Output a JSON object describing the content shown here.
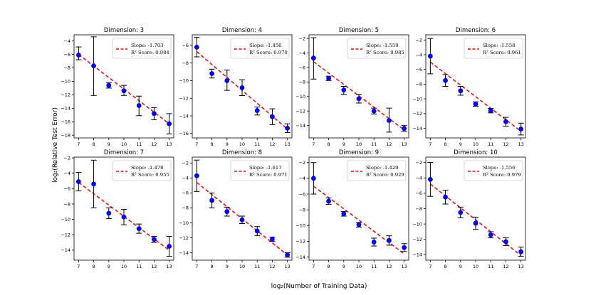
{
  "figure": {
    "ylabel": "log₂(Relative Test Error)",
    "xlabel": "log₂(Number of Training Data)",
    "fit_color": "#ff0000",
    "point_color": "#0000ff",
    "errorbar_color": "#000000"
  },
  "chart_data": [
    {
      "type": "scatter",
      "title": "Dimension: 3",
      "x": [
        7,
        8,
        9,
        10,
        11,
        12,
        13
      ],
      "y": [
        -6.1,
        -7.7,
        -10.6,
        -11.4,
        -13.6,
        -14.8,
        -16.3
      ],
      "yerr_low": [
        0.7,
        4.4,
        0.4,
        0.7,
        1.5,
        0.9,
        1.5
      ],
      "yerr_high": [
        1.2,
        4.3,
        0.4,
        0.8,
        1.4,
        0.9,
        1.5
      ],
      "fit": {
        "x": [
          7,
          13
        ],
        "y": [
          -6.0,
          -16.3
        ]
      },
      "legend": {
        "line1": "Slope: -1.703",
        "line2": "R² Score: 0.984"
      },
      "xlim": [
        6.7,
        13.3
      ],
      "ylim": [
        -18.4,
        -3.1
      ],
      "yticks": [
        -18,
        -16,
        -14,
        -12,
        -10,
        -8,
        -6,
        -4
      ],
      "xticks": [
        7,
        8,
        9,
        10,
        11,
        12,
        13
      ]
    },
    {
      "type": "scatter",
      "title": "Dimension: 4",
      "x": [
        7,
        8,
        9,
        10,
        11,
        12,
        13
      ],
      "y": [
        -6.2,
        -9.2,
        -10.0,
        -10.8,
        -13.4,
        -14.1,
        -15.4
      ],
      "yerr_low": [
        1.1,
        0.5,
        1.1,
        0.9,
        0.5,
        0.9,
        0.5
      ],
      "yerr_high": [
        1.1,
        0.5,
        1.2,
        0.9,
        0.4,
        0.9,
        0.5
      ],
      "fit": {
        "x": [
          7,
          13
        ],
        "y": [
          -6.7,
          -15.5
        ]
      },
      "legend": {
        "line1": "Slope: -1.456",
        "line2": "R² Score: 0.970"
      },
      "xlim": [
        6.7,
        13.3
      ],
      "ylim": [
        -16.5,
        -4.8
      ],
      "yticks": [
        -16,
        -14,
        -12,
        -10,
        -8,
        -6
      ],
      "xticks": [
        7,
        8,
        9,
        10,
        11,
        12,
        13
      ]
    },
    {
      "type": "scatter",
      "title": "Dimension: 5",
      "x": [
        7,
        8,
        9,
        10,
        11,
        12,
        13
      ],
      "y": [
        -4.7,
        -7.5,
        -9.1,
        -10.3,
        -12.0,
        -13.3,
        -14.4
      ],
      "yerr_low": [
        2.9,
        0.3,
        0.6,
        0.6,
        0.4,
        1.6,
        0.4
      ],
      "yerr_high": [
        2.8,
        0.3,
        0.5,
        0.6,
        0.4,
        1.7,
        0.4
      ],
      "fit": {
        "x": [
          7,
          13
        ],
        "y": [
          -5.2,
          -14.6
        ]
      },
      "legend": {
        "line1": "Slope: -1.559",
        "line2": "R² Score: 0.985"
      },
      "xlim": [
        6.7,
        13.3
      ],
      "ylim": [
        -15.7,
        -1.5
      ],
      "yticks": [
        -14,
        -12,
        -10,
        -8,
        -6,
        -4,
        -2
      ],
      "xticks": [
        7,
        8,
        9,
        10,
        11,
        12,
        13
      ]
    },
    {
      "type": "scatter",
      "title": "Dimension: 6",
      "x": [
        7,
        8,
        9,
        10,
        11,
        12,
        13
      ],
      "y": [
        -4.2,
        -7.5,
        -8.9,
        -10.7,
        -11.6,
        -13.1,
        -14.1
      ],
      "yerr_low": [
        2.4,
        0.8,
        0.6,
        0.3,
        0.3,
        0.6,
        0.8
      ],
      "yerr_high": [
        2.4,
        0.8,
        0.6,
        0.3,
        0.3,
        0.6,
        0.8
      ],
      "fit": {
        "x": [
          7,
          13
        ],
        "y": [
          -5.0,
          -14.4
        ]
      },
      "legend": {
        "line1": "Slope: -1.558",
        "line2": "R² Score: 0.961"
      },
      "xlim": [
        6.7,
        13.3
      ],
      "ylim": [
        -15.3,
        -1.3
      ],
      "yticks": [
        -14,
        -12,
        -10,
        -8,
        -6,
        -4,
        -2
      ],
      "xticks": [
        7,
        8,
        9,
        10,
        11,
        12,
        13
      ]
    },
    {
      "type": "scatter",
      "title": "Dimension: 7",
      "x": [
        7,
        8,
        9,
        10,
        11,
        12,
        13
      ],
      "y": [
        -5.1,
        -5.4,
        -9.2,
        -9.7,
        -11.2,
        -12.6,
        -13.5
      ],
      "yerr_low": [
        1.2,
        3.1,
        0.7,
        1.0,
        0.6,
        0.4,
        1.3
      ],
      "yerr_high": [
        1.2,
        3.1,
        0.7,
        1.0,
        0.6,
        0.4,
        1.3
      ],
      "fit": {
        "x": [
          7,
          13
        ],
        "y": [
          -5.2,
          -14.0
        ]
      },
      "legend": {
        "line1": "Slope: -1.478",
        "line2": "R² Score: 0.955"
      },
      "xlim": [
        6.7,
        13.3
      ],
      "ylim": [
        -15.3,
        -1.9
      ],
      "yticks": [
        -14,
        -12,
        -10,
        -8,
        -6,
        -4,
        -2
      ],
      "xticks": [
        7,
        8,
        9,
        10,
        11,
        12,
        13
      ]
    },
    {
      "type": "scatter",
      "title": "Dimension: 8",
      "x": [
        7,
        8,
        9,
        10,
        11,
        12,
        13
      ],
      "y": [
        -3.7,
        -7.0,
        -8.5,
        -9.6,
        -11.1,
        -12.2,
        -14.3
      ],
      "yerr_low": [
        2.1,
        1.0,
        0.6,
        0.5,
        0.6,
        0.3,
        0.3
      ],
      "yerr_high": [
        2.1,
        1.0,
        0.6,
        0.5,
        0.6,
        0.3,
        0.3
      ],
      "fit": {
        "x": [
          7,
          13
        ],
        "y": [
          -4.6,
          -14.3
        ]
      },
      "legend": {
        "line1": "Slope: -1.617",
        "line2": "R² Score: 0.971"
      },
      "xlim": [
        6.7,
        13.3
      ],
      "ylim": [
        -15.0,
        -1.2
      ],
      "yticks": [
        -14,
        -12,
        -10,
        -8,
        -6,
        -4,
        -2
      ],
      "xticks": [
        7,
        8,
        9,
        10,
        11,
        12,
        13
      ]
    },
    {
      "type": "scatter",
      "title": "Dimension: 9",
      "x": [
        7,
        8,
        9,
        10,
        11,
        12,
        13
      ],
      "y": [
        -4.0,
        -6.9,
        -8.5,
        -9.9,
        -12.1,
        -11.9,
        -12.8
      ],
      "yerr_low": [
        2.0,
        0.4,
        0.3,
        0.3,
        0.5,
        0.6,
        0.5
      ],
      "yerr_high": [
        2.0,
        0.4,
        0.3,
        0.3,
        0.5,
        0.6,
        0.5
      ],
      "fit": {
        "x": [
          7,
          13
        ],
        "y": [
          -5.0,
          -13.6
        ]
      },
      "legend": {
        "line1": "Slope: -1.429",
        "line2": "R² Score: 0.929"
      },
      "xlim": [
        6.7,
        13.3
      ],
      "ylim": [
        -14.4,
        -1.3
      ],
      "yticks": [
        -14,
        -12,
        -10,
        -8,
        -6,
        -4,
        -2
      ],
      "xticks": [
        7,
        8,
        9,
        10,
        11,
        12,
        13
      ]
    },
    {
      "type": "scatter",
      "title": "Dimension: 10",
      "x": [
        7,
        8,
        9,
        10,
        11,
        12,
        13
      ],
      "y": [
        -4.2,
        -6.5,
        -8.5,
        -9.9,
        -11.4,
        -12.3,
        -13.6
      ],
      "yerr_low": [
        2.2,
        0.9,
        0.7,
        0.8,
        0.4,
        0.5,
        0.6
      ],
      "yerr_high": [
        2.2,
        0.9,
        0.7,
        0.8,
        0.4,
        0.5,
        0.6
      ],
      "fit": {
        "x": [
          7,
          13
        ],
        "y": [
          -4.8,
          -14.1
        ]
      },
      "legend": {
        "line1": "Slope: -1.556",
        "line2": "R² Score: 0.979"
      },
      "xlim": [
        6.7,
        13.3
      ],
      "ylim": [
        -14.7,
        -1.3
      ],
      "yticks": [
        -14,
        -12,
        -10,
        -8,
        -6,
        -4,
        -2
      ],
      "xticks": [
        7,
        8,
        9,
        10,
        11,
        12,
        13
      ]
    }
  ]
}
